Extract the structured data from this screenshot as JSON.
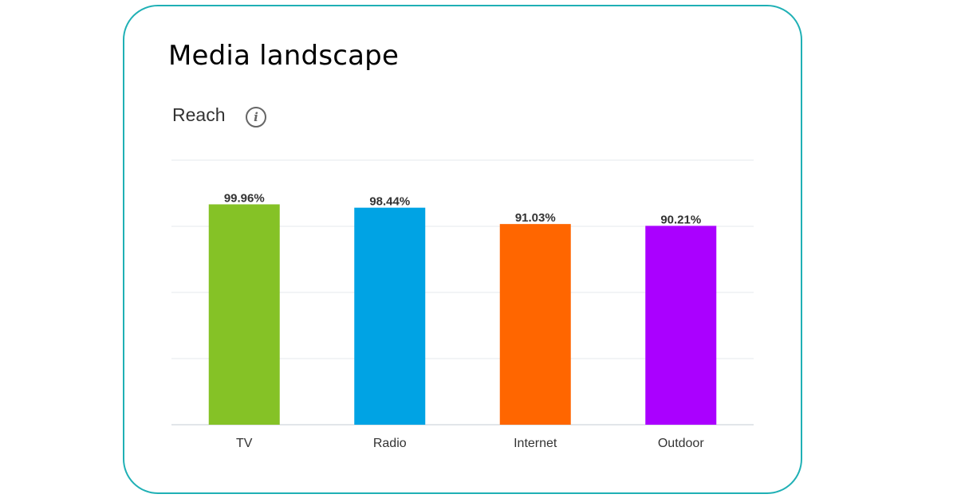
{
  "title": "Media landscape",
  "subtitle": "Reach",
  "icons": {
    "info": "info-icon"
  },
  "chart_data": {
    "type": "bar",
    "categories": [
      "TV",
      "Radio",
      "Internet",
      "Outdoor"
    ],
    "values": [
      99.96,
      98.44,
      91.03,
      90.21
    ],
    "labels": [
      "99.96%",
      "98.44%",
      "91.03%",
      "90.21%"
    ],
    "colors": [
      "#85c226",
      "#00a3e4",
      "#ff6600",
      "#aa00ff"
    ],
    "ylim": [
      0,
      120
    ],
    "yticks": [
      0,
      30,
      60,
      90,
      120
    ],
    "grid": true,
    "xlabel": "",
    "ylabel": ""
  }
}
